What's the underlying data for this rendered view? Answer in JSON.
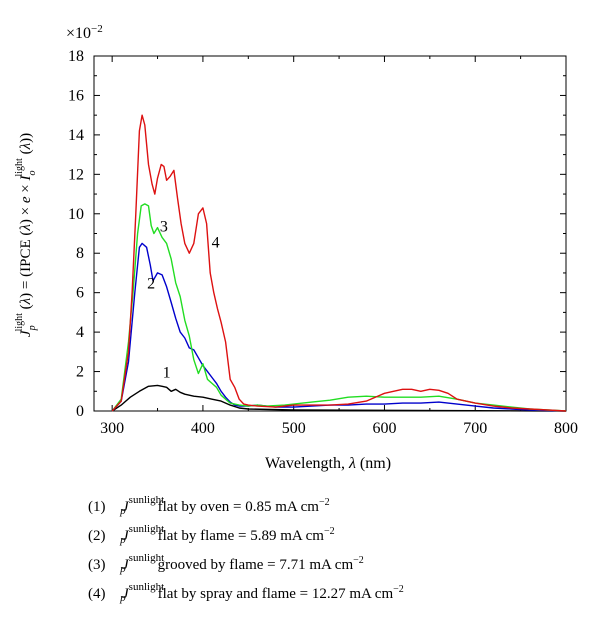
{
  "chart_data": {
    "type": "line",
    "title": "",
    "exponent_label": "×10",
    "exponent_power": "−2",
    "xlabel_text": "Wavelength, ",
    "xlabel_symbol": "λ",
    "xlabel_unit": " (nm)",
    "ylabel": "J_p^light (λ) = (IPCE (λ) × e × I_o^light (λ))",
    "xlim": [
      280,
      800
    ],
    "ylim": [
      0,
      18
    ],
    "xticks": [
      300,
      400,
      500,
      600,
      700,
      800
    ],
    "yticks": [
      0,
      2,
      4,
      6,
      8,
      10,
      12,
      14,
      16,
      18
    ],
    "grid": false,
    "series": [
      {
        "name": "1",
        "color": "#000000",
        "points": [
          [
            300,
            0.0
          ],
          [
            310,
            0.3
          ],
          [
            320,
            0.7
          ],
          [
            330,
            1.0
          ],
          [
            340,
            1.25
          ],
          [
            350,
            1.3
          ],
          [
            355,
            1.25
          ],
          [
            360,
            1.2
          ],
          [
            365,
            1.0
          ],
          [
            370,
            1.1
          ],
          [
            375,
            0.95
          ],
          [
            380,
            0.85
          ],
          [
            390,
            0.75
          ],
          [
            400,
            0.7
          ],
          [
            410,
            0.6
          ],
          [
            420,
            0.5
          ],
          [
            430,
            0.3
          ],
          [
            440,
            0.15
          ],
          [
            450,
            0.1
          ],
          [
            500,
            0.05
          ],
          [
            800,
            0.0
          ]
        ]
      },
      {
        "name": "2",
        "color": "#0000cc",
        "points": [
          [
            300,
            0.0
          ],
          [
            310,
            0.5
          ],
          [
            318,
            2.5
          ],
          [
            325,
            6.0
          ],
          [
            330,
            8.3
          ],
          [
            333,
            8.5
          ],
          [
            338,
            8.3
          ],
          [
            342,
            7.4
          ],
          [
            345,
            6.6
          ],
          [
            350,
            7.0
          ],
          [
            355,
            6.9
          ],
          [
            360,
            6.3
          ],
          [
            365,
            5.5
          ],
          [
            370,
            4.7
          ],
          [
            375,
            4.0
          ],
          [
            380,
            3.7
          ],
          [
            385,
            3.2
          ],
          [
            390,
            3.1
          ],
          [
            395,
            2.7
          ],
          [
            400,
            2.3
          ],
          [
            405,
            2.0
          ],
          [
            410,
            1.7
          ],
          [
            415,
            1.4
          ],
          [
            420,
            1.0
          ],
          [
            425,
            0.7
          ],
          [
            430,
            0.45
          ],
          [
            435,
            0.3
          ],
          [
            440,
            0.25
          ],
          [
            450,
            0.25
          ],
          [
            460,
            0.3
          ],
          [
            470,
            0.25
          ],
          [
            480,
            0.2
          ],
          [
            500,
            0.2
          ],
          [
            520,
            0.25
          ],
          [
            540,
            0.3
          ],
          [
            560,
            0.3
          ],
          [
            580,
            0.35
          ],
          [
            600,
            0.35
          ],
          [
            620,
            0.4
          ],
          [
            640,
            0.4
          ],
          [
            660,
            0.45
          ],
          [
            680,
            0.35
          ],
          [
            700,
            0.25
          ],
          [
            720,
            0.15
          ],
          [
            740,
            0.1
          ],
          [
            760,
            0.05
          ],
          [
            780,
            0.02
          ],
          [
            800,
            0.0
          ]
        ]
      },
      {
        "name": "3",
        "color": "#22dd22",
        "points": [
          [
            300,
            0.0
          ],
          [
            310,
            0.6
          ],
          [
            318,
            3.5
          ],
          [
            323,
            6.0
          ],
          [
            328,
            9.0
          ],
          [
            332,
            10.4
          ],
          [
            336,
            10.5
          ],
          [
            340,
            10.4
          ],
          [
            343,
            9.4
          ],
          [
            346,
            9.0
          ],
          [
            350,
            9.3
          ],
          [
            355,
            8.8
          ],
          [
            360,
            8.5
          ],
          [
            365,
            7.7
          ],
          [
            370,
            6.5
          ],
          [
            375,
            5.8
          ],
          [
            380,
            4.6
          ],
          [
            385,
            3.8
          ],
          [
            390,
            2.6
          ],
          [
            395,
            1.9
          ],
          [
            400,
            2.4
          ],
          [
            405,
            1.6
          ],
          [
            410,
            1.4
          ],
          [
            415,
            1.2
          ],
          [
            420,
            0.8
          ],
          [
            425,
            0.6
          ],
          [
            430,
            0.4
          ],
          [
            440,
            0.3
          ],
          [
            450,
            0.25
          ],
          [
            460,
            0.3
          ],
          [
            470,
            0.25
          ],
          [
            490,
            0.3
          ],
          [
            500,
            0.35
          ],
          [
            520,
            0.45
          ],
          [
            540,
            0.55
          ],
          [
            560,
            0.7
          ],
          [
            580,
            0.75
          ],
          [
            600,
            0.7
          ],
          [
            620,
            0.7
          ],
          [
            640,
            0.7
          ],
          [
            660,
            0.75
          ],
          [
            680,
            0.6
          ],
          [
            700,
            0.4
          ],
          [
            720,
            0.3
          ],
          [
            740,
            0.2
          ],
          [
            760,
            0.1
          ],
          [
            780,
            0.05
          ],
          [
            800,
            0.0
          ]
        ]
      },
      {
        "name": "4",
        "color": "#dd1111",
        "points": [
          [
            300,
            0.0
          ],
          [
            310,
            0.5
          ],
          [
            318,
            3.0
          ],
          [
            322,
            6.0
          ],
          [
            326,
            10.0
          ],
          [
            330,
            14.2
          ],
          [
            333,
            15.0
          ],
          [
            336,
            14.5
          ],
          [
            340,
            12.5
          ],
          [
            344,
            11.5
          ],
          [
            347,
            11.0
          ],
          [
            350,
            11.8
          ],
          [
            354,
            12.5
          ],
          [
            357,
            12.4
          ],
          [
            360,
            11.7
          ],
          [
            364,
            11.9
          ],
          [
            368,
            12.2
          ],
          [
            372,
            10.8
          ],
          [
            376,
            9.5
          ],
          [
            380,
            8.5
          ],
          [
            385,
            8.0
          ],
          [
            390,
            8.5
          ],
          [
            395,
            10.0
          ],
          [
            400,
            10.3
          ],
          [
            404,
            9.5
          ],
          [
            408,
            7.0
          ],
          [
            412,
            6.0
          ],
          [
            416,
            5.2
          ],
          [
            420,
            4.5
          ],
          [
            425,
            3.5
          ],
          [
            430,
            1.6
          ],
          [
            435,
            1.2
          ],
          [
            440,
            0.6
          ],
          [
            445,
            0.35
          ],
          [
            450,
            0.3
          ],
          [
            460,
            0.25
          ],
          [
            480,
            0.2
          ],
          [
            500,
            0.3
          ],
          [
            520,
            0.3
          ],
          [
            540,
            0.3
          ],
          [
            560,
            0.35
          ],
          [
            580,
            0.5
          ],
          [
            600,
            0.9
          ],
          [
            610,
            1.0
          ],
          [
            620,
            1.1
          ],
          [
            630,
            1.1
          ],
          [
            640,
            1.0
          ],
          [
            650,
            1.1
          ],
          [
            660,
            1.05
          ],
          [
            670,
            0.9
          ],
          [
            680,
            0.6
          ],
          [
            700,
            0.4
          ],
          [
            720,
            0.25
          ],
          [
            740,
            0.15
          ],
          [
            760,
            0.1
          ],
          [
            780,
            0.05
          ],
          [
            800,
            0.0
          ]
        ]
      }
    ],
    "annotations": [
      {
        "text": "1",
        "x": 360,
        "y": 1.7
      },
      {
        "text": "2",
        "x": 343,
        "y": 6.2
      },
      {
        "text": "3",
        "x": 357,
        "y": 9.1
      },
      {
        "text": "4",
        "x": 414,
        "y": 8.3
      }
    ],
    "legend": [
      {
        "num": "(1)",
        "label": "flat by oven = 0.85 mA cm"
      },
      {
        "num": "(2)",
        "label": "flat by flame = 5.89 mA cm"
      },
      {
        "num": "(3)",
        "label": "grooved by flame = 7.71 mA cm"
      },
      {
        "num": "(4)",
        "label": "flat by spray and flame = 12.27 mA cm"
      }
    ],
    "legend_symbol": "J",
    "legend_symbol_sup": "sunlight",
    "legend_symbol_sub": "p",
    "legend_unit_power": "−2"
  }
}
